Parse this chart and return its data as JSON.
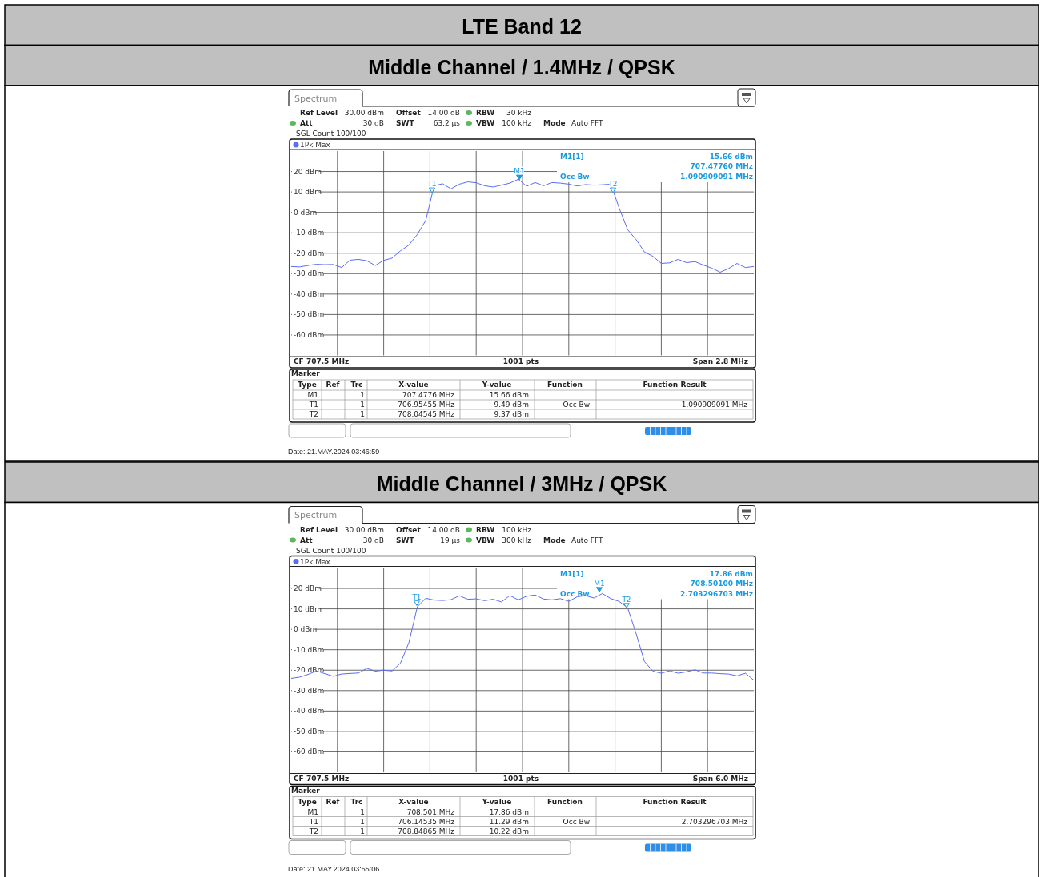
{
  "chart_data": [
    {
      "type": "line",
      "title": "LTE Band 12",
      "subtitle": "Middle Channel / 1.4MHz / QPSK",
      "categories": [
        null,
        null,
        null,
        null,
        null,
        null,
        null,
        null,
        null,
        null,
        null,
        null,
        null,
        null,
        null,
        null,
        null,
        null,
        null,
        null,
        null,
        null,
        null,
        null,
        null,
        null,
        null,
        null,
        null,
        null,
        null,
        null,
        null,
        null,
        null,
        null,
        null,
        null,
        null,
        null,
        null,
        null,
        null,
        null,
        null,
        null,
        null,
        null,
        null,
        null,
        null,
        null,
        null,
        null,
        null,
        null
      ],
      "ylim": [
        -70,
        30
      ],
      "yticks": [
        {
          "value": 20,
          "label": "20 dBm"
        },
        {
          "value": 10,
          "label": "10 dBm"
        },
        {
          "value": 0,
          "label": "0 dBm"
        },
        {
          "value": -10,
          "label": "-10 dBm"
        },
        {
          "value": -20,
          "label": "-20 dBm"
        },
        {
          "value": -30,
          "label": "-30 dBm"
        },
        {
          "value": -40,
          "label": "-40 dBm"
        },
        {
          "value": -50,
          "label": "-50 dBm"
        },
        {
          "value": -60,
          "label": "-60 dBm"
        }
      ],
      "grid": true,
      "legend": "top left",
      "tick_labels": "y",
      "series": [
        {
          "name": "1Pk Max",
          "color": "#5b6cf5",
          "values": [
            -26.5,
            -26.7,
            -26,
            -25.4,
            -25.6,
            -25.5,
            -27,
            -23.4,
            -23,
            -23.7,
            -26,
            -23.5,
            -22.4,
            -18.8,
            -16,
            -10.8,
            -4,
            13,
            14,
            11.5,
            13.8,
            14.9,
            14.5,
            13,
            12.4,
            13.3,
            14.3,
            16.2,
            12.8,
            14.6,
            13,
            14.6,
            14.3,
            13.8,
            12.9,
            13.6,
            13.3,
            13.5,
            13.8,
            2,
            -8.5,
            -13.3,
            -19.4,
            -21.5,
            -25,
            -24.7,
            -23,
            -24.6,
            -24.1,
            -25.8,
            -27.3,
            -29.3,
            -27.5,
            -25,
            -27,
            -26.5
          ]
        }
      ],
      "annotations": [
        "Spectrum",
        "Ref Level",
        "30.00 dBm",
        "Offset",
        "14.00 dB",
        "RBW",
        "30 kHz",
        "Att",
        "30 dB",
        "SWT",
        "63.2 µs",
        "VBW",
        "100 kHz",
        "Mode",
        "Auto FFT",
        "SGL Count 100/100",
        "M1[1]",
        "15.66 dBm",
        "707.47760 MHz",
        "Occ Bw",
        "1.090909091 MHz",
        "CF 707.5 MHz",
        "1001 pts",
        "Span 2.8 MHz",
        "Marker",
        "Type",
        "Ref",
        "Trc",
        "X-value",
        "Y-value",
        "Function",
        "Function Result",
        "M1",
        "1",
        "707.4776 MHz",
        "15.66 dBm",
        "T1",
        "1",
        "706.95455 MHz",
        "9.49 dBm",
        "Occ Bw",
        "1.090909091 MHz",
        "T2",
        "1",
        "708.04545 MHz",
        "9.37 dBm",
        "Date: 21.MAY.2024  03:46:59",
        "M1",
        "T1",
        "T2"
      ]
    },
    {
      "type": "line",
      "title": "Middle Channel / 3MHz / QPSK",
      "categories": [
        null,
        null,
        null,
        null,
        null,
        null,
        null,
        null,
        null,
        null,
        null,
        null,
        null,
        null,
        null,
        null,
        null,
        null,
        null,
        null,
        null,
        null,
        null,
        null,
        null,
        null,
        null,
        null,
        null,
        null,
        null,
        null,
        null,
        null,
        null,
        null,
        null,
        null,
        null,
        null,
        null,
        null,
        null,
        null,
        null,
        null,
        null,
        null,
        null,
        null,
        null,
        null,
        null,
        null,
        null,
        null
      ],
      "ylim": [
        -70,
        30
      ],
      "yticks": [
        {
          "value": 20,
          "label": "20 dBm"
        },
        {
          "value": 10,
          "label": "10 dBm"
        },
        {
          "value": 0,
          "label": "0 dBm"
        },
        {
          "value": -10,
          "label": "-10 dBm"
        },
        {
          "value": -20,
          "label": "-20 dBm"
        },
        {
          "value": -30,
          "label": "-30 dBm"
        },
        {
          "value": -40,
          "label": "-40 dBm"
        },
        {
          "value": -50,
          "label": "-50 dBm"
        },
        {
          "value": -60,
          "label": "-60 dBm"
        }
      ],
      "grid": true,
      "legend": "top left",
      "tick_labels": "y",
      "series": [
        {
          "name": "1Pk Max",
          "color": "#5b6cf5",
          "values": [
            -24,
            -23.4,
            -22.1,
            -20.4,
            -21.7,
            -23,
            -21.9,
            -21.6,
            -21.4,
            -19.1,
            -20.5,
            -20,
            -20.4,
            -16.5,
            -6.5,
            11,
            15.2,
            14.3,
            14.1,
            14.5,
            16.4,
            14.7,
            14.9,
            14,
            14.7,
            13.4,
            16.5,
            14.4,
            16.2,
            16.8,
            14.8,
            14.4,
            15,
            13.7,
            15.9,
            16.5,
            15.3,
            17.5,
            15,
            13.6,
            10.5,
            -2,
            -15.8,
            -20.5,
            -21.5,
            -20.3,
            -21.5,
            -20.8,
            -19.8,
            -21.4,
            -21.4,
            -21.7,
            -21.9,
            -22.8,
            -21.5,
            -24.9
          ]
        }
      ],
      "annotations": [
        "Spectrum",
        "Ref Level",
        "30.00 dBm",
        "Offset",
        "14.00 dB",
        "RBW",
        "100 kHz",
        "Att",
        "30 dB",
        "SWT",
        "19 µs",
        "VBW",
        "300 kHz",
        "Mode",
        "Auto FFT",
        "SGL Count 100/100",
        "M1[1]",
        "17.86 dBm",
        "708.50100 MHz",
        "Occ Bw",
        "2.703296703 MHz",
        "CF 707.5 MHz",
        "1001 pts",
        "Span 6.0 MHz",
        "Marker",
        "Type",
        "Ref",
        "Trc",
        "X-value",
        "Y-value",
        "Function",
        "Function Result",
        "M1",
        "1",
        "708.501 MHz",
        "17.86 dBm",
        "T1",
        "1",
        "706.14535 MHz",
        "11.29 dBm",
        "Occ Bw",
        "2.703296703 MHz",
        "T2",
        "1",
        "708.84865 MHz",
        "10.22 dBm",
        "Date: 21.MAY.2024  03:55:06",
        "M1",
        "T1",
        "T2"
      ]
    }
  ]
}
